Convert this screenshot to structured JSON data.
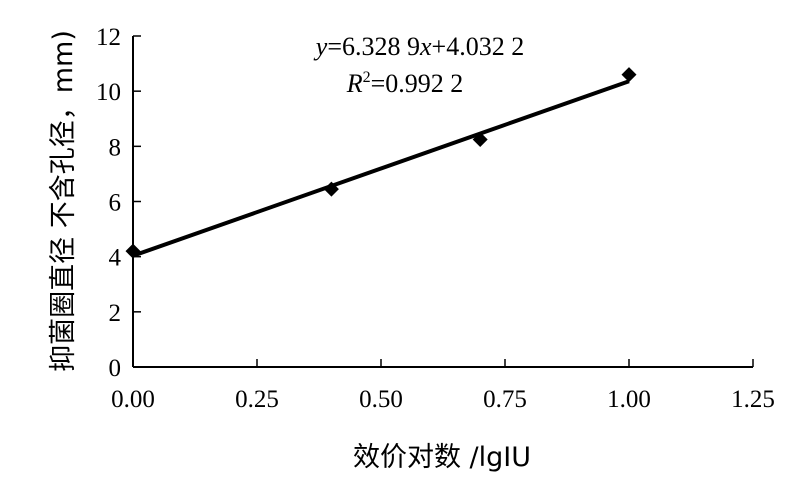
{
  "chart_data": {
    "type": "scatter",
    "x_axis": {
      "label": "效价对数 /lgIU",
      "range": [
        0,
        1.25
      ],
      "ticks": [
        0,
        0.25,
        0.5,
        0.75,
        1.0,
        1.25
      ],
      "tick_labels": [
        "0.00",
        "0.25",
        "0.50",
        "0.75",
        "1.00",
        "1.25"
      ]
    },
    "y_axis": {
      "label": "抑菌圈直径 不含孔径，mm)",
      "range": [
        0,
        12
      ],
      "ticks": [
        0,
        2,
        4,
        6,
        8,
        10,
        12
      ],
      "tick_labels": [
        "0",
        "2",
        "4",
        "6",
        "8",
        "10",
        "12"
      ]
    },
    "series": [
      {
        "marker": "diamond",
        "points": [
          {
            "x": 0.0,
            "y": 4.2
          },
          {
            "x": 0.4,
            "y": 6.45
          },
          {
            "x": 0.7,
            "y": 8.25
          },
          {
            "x": 1.0,
            "y": 10.6
          }
        ]
      }
    ],
    "trendline": {
      "type": "linear",
      "slope": 6.3289,
      "intercept": 4.0322,
      "x_range": [
        0,
        1.0
      ],
      "equation_text": "y=6.328 9x+4.032 2",
      "r2_text": "R²=0.992 2"
    },
    "grid": false,
    "legend": "none"
  }
}
